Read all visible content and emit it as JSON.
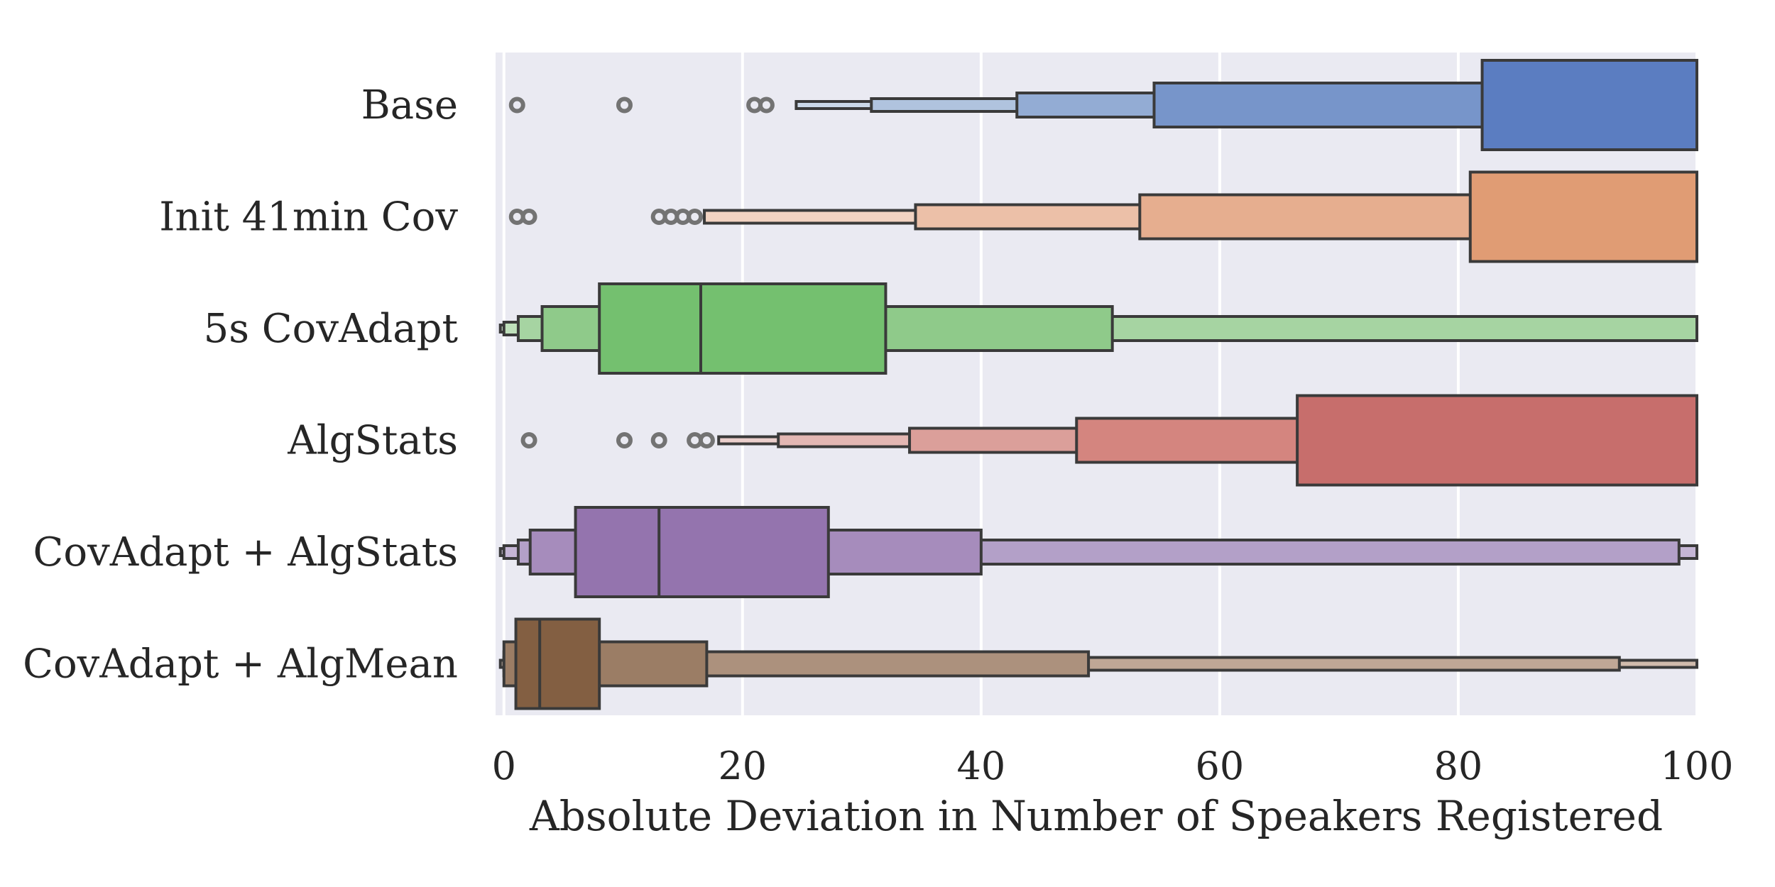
{
  "chart_data": {
    "type": "boxen",
    "orientation": "horizontal",
    "xlabel": "Absolute Deviation in Number of Speakers Registered",
    "ylabel": "",
    "title": "",
    "xlim": [
      -0.7,
      100
    ],
    "xticks": [
      0,
      20,
      40,
      60,
      80,
      100
    ],
    "xtick_labels": [
      "0",
      "20",
      "40",
      "60",
      "80",
      "100"
    ],
    "grid": true,
    "background": "#eaeaf2",
    "categories": [
      {
        "name": "Base",
        "colors": [
          "#5b7dc1",
          "#7795ca",
          "#93acd4",
          "#b0c3de",
          "#cbd8e8"
        ],
        "median": null,
        "boxes": [
          [
            82,
            100
          ],
          [
            54.5,
            100
          ],
          [
            43,
            100
          ],
          [
            30.8,
            100
          ],
          [
            24.5,
            100
          ]
        ],
        "outliers": [
          1.1,
          10.1,
          21,
          22
        ]
      },
      {
        "name": "Init 41min Cov",
        "colors": [
          "#e09c74",
          "#e6ae8f",
          "#ecc0a8",
          "#f2d3c2"
        ],
        "median": null,
        "boxes": [
          [
            81,
            100
          ],
          [
            53.3,
            100
          ],
          [
            34.5,
            100
          ],
          [
            16.8,
            100
          ]
        ],
        "outliers": [
          1.1,
          2.1,
          13,
          14,
          15,
          16
        ]
      },
      {
        "name": "5s CovAdapt",
        "colors": [
          "#74c06f",
          "#8fca8a",
          "#a6d4a2",
          "#bfe0bb",
          "#d6ebd3"
        ],
        "median": 16.5,
        "boxes": [
          [
            8,
            32
          ],
          [
            3.2,
            51
          ],
          [
            1.2,
            100
          ],
          [
            0,
            100
          ],
          [
            -0.3,
            100
          ]
        ],
        "outliers": []
      },
      {
        "name": "AlgStats",
        "colors": [
          "#c76e6c",
          "#d4857f",
          "#db9f9a",
          "#e3b7b3",
          "#ebcfcc"
        ],
        "median": null,
        "boxes": [
          [
            66.5,
            100
          ],
          [
            48,
            100
          ],
          [
            34,
            100
          ],
          [
            23,
            100
          ],
          [
            18,
            100
          ]
        ],
        "outliers": [
          2.1,
          10.1,
          13,
          16,
          17
        ]
      },
      {
        "name": "CovAdapt + AlgStats",
        "colors": [
          "#9474ae",
          "#a68cbc",
          "#b3a0c8",
          "#c5b6d5",
          "#d6cbe2"
        ],
        "median": 13,
        "boxes": [
          [
            6,
            27.2
          ],
          [
            2.2,
            40
          ],
          [
            1.2,
            98.5
          ],
          [
            0,
            100
          ],
          [
            -0.3,
            100
          ]
        ],
        "outliers": []
      },
      {
        "name": "CovAdapt + AlgMean",
        "colors": [
          "#835f42",
          "#9b7d65",
          "#ac917d",
          "#bfa796",
          "#d0bbac"
        ],
        "median": 3,
        "boxes": [
          [
            1,
            8
          ],
          [
            0,
            17
          ],
          [
            0,
            49
          ],
          [
            0,
            93.5
          ],
          [
            -0.3,
            100
          ]
        ],
        "outliers": []
      }
    ]
  }
}
